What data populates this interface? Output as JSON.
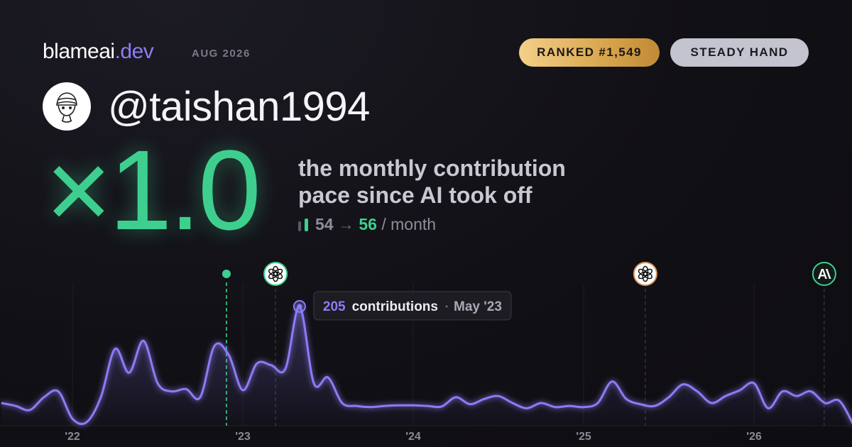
{
  "header": {
    "brand": "blameai",
    "tld": ".dev",
    "date": "AUG 2026"
  },
  "badges": {
    "rank": "RANKED #1,549",
    "style": "STEADY HAND"
  },
  "user": {
    "handle": "@taishan1994"
  },
  "stat": {
    "multiplier": "×1.0",
    "line1": "the monthly contribution",
    "line2": "pace since AI took off",
    "before": 54,
    "arrow": "→",
    "after": 56,
    "unit": "/ month"
  },
  "chart_data": {
    "type": "area",
    "x": [
      2021.583,
      2021.667,
      2021.75,
      2021.833,
      2021.917,
      2022,
      2022.083,
      2022.167,
      2022.25,
      2022.333,
      2022.417,
      2022.5,
      2022.583,
      2022.667,
      2022.75,
      2022.833,
      2022.917,
      2023,
      2023.083,
      2023.167,
      2023.25,
      2023.333,
      2023.417,
      2023.5,
      2023.583,
      2023.667,
      2023.75,
      2023.833,
      2023.917,
      2024,
      2024.083,
      2024.167,
      2024.25,
      2024.333,
      2024.417,
      2024.5,
      2024.583,
      2024.667,
      2024.75,
      2024.833,
      2024.917,
      2025,
      2025.083,
      2025.167,
      2025.25,
      2025.333,
      2025.417,
      2025.5,
      2025.583,
      2025.667,
      2025.75,
      2025.833,
      2025.917,
      2026,
      2026.083,
      2026.167,
      2026.25,
      2026.333,
      2026.417,
      2026.5,
      2026.583
    ],
    "series": [
      {
        "name": "contributions",
        "color": "#8b7cf6",
        "values": [
          39,
          34,
          27,
          49,
          59,
          12,
          6,
          49,
          132,
          91,
          146,
          73,
          59,
          63,
          49,
          137,
          122,
          61,
          107,
          104,
          98,
          205,
          73,
          83,
          39,
          34,
          32,
          34,
          35,
          35,
          34,
          33,
          49,
          37,
          46,
          51,
          39,
          30,
          39,
          32,
          34,
          32,
          39,
          76,
          46,
          37,
          34,
          49,
          71,
          59,
          39,
          51,
          61,
          73,
          30,
          59,
          51,
          59,
          39,
          43,
          2
        ]
      }
    ],
    "xlim": [
      2021.575,
      2026.575
    ],
    "ylim": [
      0,
      250
    ],
    "xticks": [
      {
        "value": 2022,
        "label": "'22"
      },
      {
        "value": 2023,
        "label": "'23"
      },
      {
        "value": 2024,
        "label": "'24"
      },
      {
        "value": 2025,
        "label": "'25"
      },
      {
        "value": 2026,
        "label": "'26"
      }
    ],
    "grid": true,
    "events": [
      {
        "x": 2022.904,
        "color": "#3ecf8e",
        "marker": "dot"
      },
      {
        "x": 2023.192,
        "color": "#3ecf8e",
        "marker": "openai"
      },
      {
        "x": 2025.362,
        "color": "#d9965b",
        "marker": "openai"
      },
      {
        "x": 2026.412,
        "color": "#3ecf8e",
        "marker": "anthropic"
      }
    ],
    "highlight": 21,
    "tooltip": {
      "label": "contributions",
      "date": "May '23"
    }
  }
}
